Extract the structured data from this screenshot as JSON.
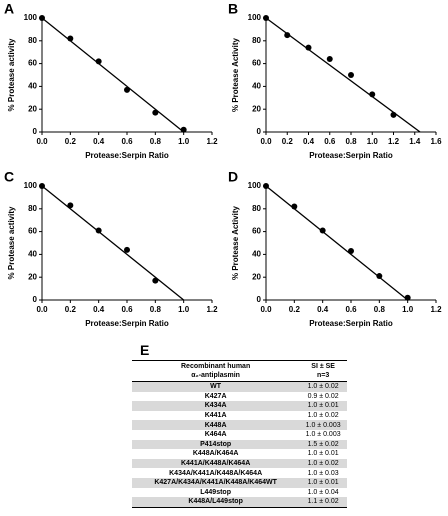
{
  "chart_data": [
    {
      "type": "scatter",
      "panel": "A",
      "xlabel": "Protease:Serpin Ratio",
      "ylabel": "% Protease activity",
      "points": {
        "x": [
          0,
          0.2,
          0.4,
          0.6,
          0.8,
          1.0
        ],
        "y": [
          100,
          82,
          62,
          37,
          17,
          2
        ]
      },
      "fit_line": {
        "x": [
          0,
          1.0
        ],
        "y": [
          100,
          0
        ]
      },
      "xlim": [
        0,
        1.2
      ],
      "ylim": [
        0,
        100
      ],
      "xticks": [
        {
          "value": 0,
          "label": "0.0"
        },
        {
          "value": 0.2,
          "label": "0.2"
        },
        {
          "value": 0.4,
          "label": "0.4"
        },
        {
          "value": 0.6,
          "label": "0.6"
        },
        {
          "value": 0.8,
          "label": "0.8"
        },
        {
          "value": 1.0,
          "label": "1.0"
        },
        {
          "value": 1.2,
          "label": "1.2"
        }
      ],
      "yticks": [
        0,
        20,
        40,
        60,
        80,
        100
      ],
      "color": "#000000"
    },
    {
      "type": "scatter",
      "panel": "B",
      "xlabel": "Protease:Serpin Ratio",
      "ylabel": "% Protease Activity",
      "points": {
        "x": [
          0,
          0.2,
          0.4,
          0.6,
          0.8,
          1.0,
          1.2
        ],
        "y": [
          100,
          85,
          74,
          64,
          50,
          33,
          15
        ]
      },
      "fit_line": {
        "x": [
          0,
          1.45
        ],
        "y": [
          100,
          0
        ]
      },
      "xlim": [
        0,
        1.6
      ],
      "ylim": [
        0,
        100
      ],
      "xticks": [
        {
          "value": 0,
          "label": "0.0"
        },
        {
          "value": 0.2,
          "label": "0.2"
        },
        {
          "value": 0.4,
          "label": "0.4"
        },
        {
          "value": 0.6,
          "label": "0.6"
        },
        {
          "value": 0.8,
          "label": "0.8"
        },
        {
          "value": 1.0,
          "label": "1.0"
        },
        {
          "value": 1.2,
          "label": "1.2"
        },
        {
          "value": 1.4,
          "label": "1.4"
        },
        {
          "value": 1.6,
          "label": "1.6"
        }
      ],
      "yticks": [
        0,
        20,
        40,
        60,
        80,
        100
      ],
      "color": "#000000"
    },
    {
      "type": "scatter",
      "panel": "C",
      "xlabel": "Protease:Serpin Ratio",
      "ylabel": "% Protease activity",
      "points": {
        "x": [
          0,
          0.2,
          0.4,
          0.6,
          0.8
        ],
        "y": [
          100,
          83,
          61,
          44,
          17
        ]
      },
      "fit_line": {
        "x": [
          0,
          1.0
        ],
        "y": [
          100,
          0
        ]
      },
      "xlim": [
        0,
        1.2
      ],
      "ylim": [
        0,
        100
      ],
      "xticks": [
        {
          "value": 0,
          "label": "0.0"
        },
        {
          "value": 0.2,
          "label": "0.2"
        },
        {
          "value": 0.4,
          "label": "0.4"
        },
        {
          "value": 0.6,
          "label": "0.6"
        },
        {
          "value": 0.8,
          "label": "0.8"
        },
        {
          "value": 1.0,
          "label": "1.0"
        },
        {
          "value": 1.2,
          "label": "1.2"
        }
      ],
      "yticks": [
        0,
        20,
        40,
        60,
        80,
        100
      ],
      "color": "#000000"
    },
    {
      "type": "scatter",
      "panel": "D",
      "xlabel": "Protease:Serpin Ratio",
      "ylabel": "% Protease Activity",
      "points": {
        "x": [
          0,
          0.2,
          0.4,
          0.6,
          0.8,
          1.0
        ],
        "y": [
          100,
          82,
          61,
          43,
          21,
          2
        ]
      },
      "fit_line": {
        "x": [
          0,
          1.0
        ],
        "y": [
          100,
          0
        ]
      },
      "xlim": [
        0,
        1.2
      ],
      "ylim": [
        0,
        100
      ],
      "xticks": [
        {
          "value": 0,
          "label": "0.0"
        },
        {
          "value": 0.2,
          "label": "0.2"
        },
        {
          "value": 0.4,
          "label": "0.4"
        },
        {
          "value": 0.6,
          "label": "0.6"
        },
        {
          "value": 0.8,
          "label": "0.8"
        },
        {
          "value": 1.0,
          "label": "1.0"
        },
        {
          "value": 1.2,
          "label": "1.2"
        }
      ],
      "yticks": [
        0,
        20,
        40,
        60,
        80,
        100
      ],
      "color": "#000000"
    }
  ],
  "table": {
    "panel": "E",
    "header": [
      [
        "Recombinant human",
        "α₂-antiplasmin"
      ],
      [
        "SI ± SE",
        "n=3"
      ]
    ],
    "rows": [
      [
        "WT",
        "1.0 ± 0.02"
      ],
      [
        "K427A",
        "0.9 ± 0.02"
      ],
      [
        "K434A",
        "1.0 ± 0.01"
      ],
      [
        "K441A",
        "1.0 ± 0.02"
      ],
      [
        "K448A",
        "1.0 ± 0.003"
      ],
      [
        "K464A",
        "1.0 ± 0.003"
      ],
      [
        "P414stop",
        "1.5 ± 0.02"
      ],
      [
        "K448A/K464A",
        "1.0 ± 0.01"
      ],
      [
        "K441A/K448A/K464A",
        "1.0 ± 0.02"
      ],
      [
        "K434A/K441A/K448A/K464A",
        "1.0 ± 0.03"
      ],
      [
        "K427A/K434A/K441A/K448A/K464WT",
        "1.0 ± 0.01"
      ],
      [
        "L449stop",
        "1.0 ± 0.04"
      ],
      [
        "K448A/L449stop",
        "1.1 ± 0.02"
      ]
    ]
  }
}
